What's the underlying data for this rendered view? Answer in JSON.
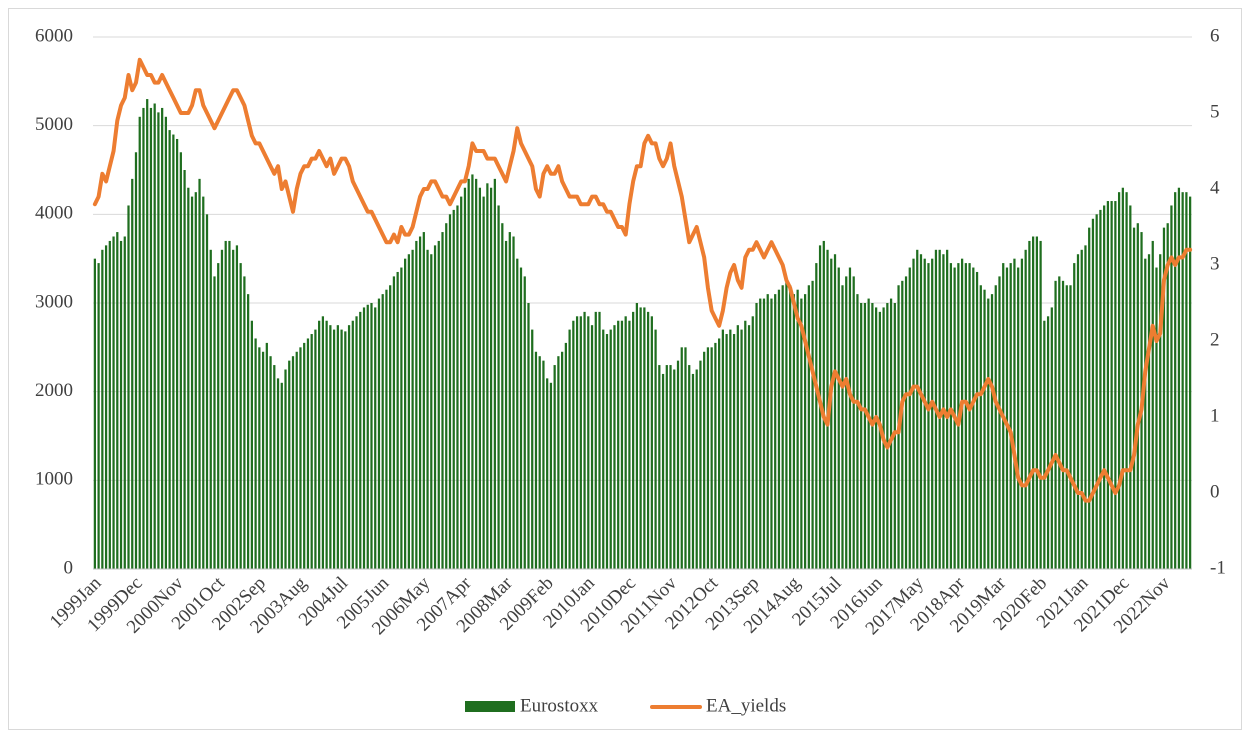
{
  "chart_data": {
    "type": "bar_line",
    "categories": [
      "1999Jan",
      null,
      null,
      null,
      null,
      null,
      null,
      null,
      null,
      null,
      null,
      "1999Dec",
      null,
      null,
      null,
      null,
      null,
      null,
      null,
      null,
      null,
      null,
      "2000Nov",
      null,
      null,
      null,
      null,
      null,
      null,
      null,
      null,
      null,
      null,
      "2001Oct",
      null,
      null,
      null,
      null,
      null,
      null,
      null,
      null,
      null,
      null,
      "2002Sep",
      null,
      null,
      null,
      null,
      null,
      null,
      null,
      null,
      null,
      null,
      "2003Aug",
      null,
      null,
      null,
      null,
      null,
      null,
      null,
      null,
      null,
      null,
      "2004Jul",
      null,
      null,
      null,
      null,
      null,
      null,
      null,
      null,
      null,
      null,
      "2005Jun",
      null,
      null,
      null,
      null,
      null,
      null,
      null,
      null,
      null,
      null,
      "2006May",
      null,
      null,
      null,
      null,
      null,
      null,
      null,
      null,
      null,
      null,
      "2007Apr",
      null,
      null,
      null,
      null,
      null,
      null,
      null,
      null,
      null,
      null,
      "2008Mar",
      null,
      null,
      null,
      null,
      null,
      null,
      null,
      null,
      null,
      null,
      "2009Feb",
      null,
      null,
      null,
      null,
      null,
      null,
      null,
      null,
      null,
      null,
      "2010Jan",
      null,
      null,
      null,
      null,
      null,
      null,
      null,
      null,
      null,
      null,
      "2010Dec",
      null,
      null,
      null,
      null,
      null,
      null,
      null,
      null,
      null,
      null,
      "2011Nov",
      null,
      null,
      null,
      null,
      null,
      null,
      null,
      null,
      null,
      null,
      "2012Oct",
      null,
      null,
      null,
      null,
      null,
      null,
      null,
      null,
      null,
      null,
      "2013Sep",
      null,
      null,
      null,
      null,
      null,
      null,
      null,
      null,
      null,
      null,
      "2014Aug",
      null,
      null,
      null,
      null,
      null,
      null,
      null,
      null,
      null,
      null,
      "2015Jul",
      null,
      null,
      null,
      null,
      null,
      null,
      null,
      null,
      null,
      null,
      "2016Jun",
      null,
      null,
      null,
      null,
      null,
      null,
      null,
      null,
      null,
      null,
      "2017May",
      null,
      null,
      null,
      null,
      null,
      null,
      null,
      null,
      null,
      null,
      "2018Apr",
      null,
      null,
      null,
      null,
      null,
      null,
      null,
      null,
      null,
      null,
      "2019Mar",
      null,
      null,
      null,
      null,
      null,
      null,
      null,
      null,
      null,
      null,
      "2020Feb",
      null,
      null,
      null,
      null,
      null,
      null,
      null,
      null,
      null,
      null,
      "2021Jan",
      null,
      null,
      null,
      null,
      null,
      null,
      null,
      null,
      null,
      null,
      "2021Dec",
      null,
      null,
      null,
      null,
      null,
      null,
      null,
      null,
      null,
      null,
      "2022Nov",
      null,
      null,
      null,
      null,
      null,
      null,
      null
    ],
    "series": [
      {
        "name": "Eurostoxx",
        "type": "bar",
        "color": "#1f6e1f",
        "values": [
          3500,
          3450,
          3600,
          3650,
          3700,
          3750,
          3800,
          3700,
          3750,
          4100,
          4400,
          4700,
          5100,
          5200,
          5300,
          5200,
          5250,
          5150,
          5200,
          5100,
          4950,
          4900,
          4850,
          4700,
          4500,
          4300,
          4200,
          4250,
          4400,
          4200,
          4000,
          3600,
          3300,
          3450,
          3600,
          3700,
          3700,
          3600,
          3650,
          3450,
          3300,
          3100,
          2800,
          2600,
          2500,
          2450,
          2550,
          2400,
          2300,
          2150,
          2100,
          2250,
          2350,
          2400,
          2450,
          2500,
          2550,
          2600,
          2650,
          2700,
          2800,
          2850,
          2800,
          2750,
          2700,
          2750,
          2700,
          2680,
          2750,
          2800,
          2850,
          2900,
          2950,
          2980,
          3000,
          2950,
          3050,
          3100,
          3150,
          3200,
          3300,
          3350,
          3400,
          3500,
          3550,
          3600,
          3700,
          3750,
          3800,
          3600,
          3550,
          3650,
          3700,
          3800,
          3900,
          4000,
          4050,
          4100,
          4200,
          4300,
          4400,
          4450,
          4400,
          4300,
          4200,
          4350,
          4300,
          4400,
          4100,
          3900,
          3700,
          3800,
          3750,
          3500,
          3400,
          3300,
          3000,
          2700,
          2450,
          2400,
          2350,
          2150,
          2100,
          2300,
          2400,
          2450,
          2550,
          2700,
          2800,
          2850,
          2850,
          2900,
          2850,
          2750,
          2900,
          2900,
          2700,
          2650,
          2700,
          2750,
          2800,
          2800,
          2850,
          2800,
          2900,
          3000,
          2950,
          2950,
          2900,
          2850,
          2700,
          2300,
          2200,
          2300,
          2300,
          2250,
          2350,
          2500,
          2500,
          2300,
          2200,
          2250,
          2350,
          2450,
          2500,
          2500,
          2550,
          2600,
          2700,
          2650,
          2700,
          2650,
          2750,
          2700,
          2800,
          2750,
          2850,
          3000,
          3050,
          3050,
          3100,
          3050,
          3100,
          3150,
          3200,
          3250,
          3200,
          3100,
          3150,
          3050,
          3100,
          3200,
          3250,
          3450,
          3650,
          3700,
          3600,
          3500,
          3550,
          3400,
          3200,
          3300,
          3400,
          3300,
          3100,
          3000,
          3000,
          3050,
          3000,
          2950,
          2900,
          2950,
          3000,
          3050,
          3000,
          3200,
          3250,
          3300,
          3400,
          3500,
          3600,
          3550,
          3500,
          3450,
          3500,
          3600,
          3600,
          3550,
          3600,
          3450,
          3400,
          3450,
          3500,
          3450,
          3450,
          3400,
          3350,
          3200,
          3150,
          3050,
          3100,
          3200,
          3300,
          3450,
          3400,
          3450,
          3500,
          3400,
          3500,
          3600,
          3700,
          3750,
          3750,
          3700,
          2800,
          2850,
          2950,
          3250,
          3300,
          3250,
          3200,
          3200,
          3450,
          3550,
          3600,
          3650,
          3850,
          3950,
          4000,
          4050,
          4100,
          4150,
          4150,
          4150,
          4250,
          4300,
          4250,
          4100,
          3850,
          3900,
          3800,
          3500,
          3550,
          3700,
          3400,
          3550,
          3850,
          3900,
          4100,
          4250,
          4300,
          4250,
          4250,
          4200
        ]
      },
      {
        "name": "EA_yields",
        "type": "line",
        "axis": "y2",
        "color": "#ed7d31",
        "values": [
          3.8,
          3.9,
          4.2,
          4.1,
          4.3,
          4.5,
          4.9,
          5.1,
          5.2,
          5.5,
          5.3,
          5.4,
          5.7,
          5.6,
          5.5,
          5.5,
          5.4,
          5.4,
          5.5,
          5.4,
          5.3,
          5.2,
          5.1,
          5.0,
          5.0,
          5.0,
          5.1,
          5.3,
          5.3,
          5.1,
          5.0,
          4.9,
          4.8,
          4.9,
          5.0,
          5.1,
          5.2,
          5.3,
          5.3,
          5.2,
          5.1,
          4.9,
          4.7,
          4.6,
          4.6,
          4.5,
          4.4,
          4.3,
          4.2,
          4.3,
          4.0,
          4.1,
          3.9,
          3.7,
          4.0,
          4.2,
          4.3,
          4.3,
          4.4,
          4.4,
          4.5,
          4.4,
          4.3,
          4.4,
          4.2,
          4.3,
          4.4,
          4.4,
          4.3,
          4.1,
          4.0,
          3.9,
          3.8,
          3.7,
          3.7,
          3.6,
          3.5,
          3.4,
          3.3,
          3.3,
          3.4,
          3.3,
          3.5,
          3.4,
          3.4,
          3.5,
          3.7,
          3.9,
          4.0,
          4.0,
          4.1,
          4.1,
          4.0,
          3.9,
          3.9,
          3.8,
          3.9,
          4.0,
          4.1,
          4.1,
          4.3,
          4.6,
          4.5,
          4.5,
          4.5,
          4.4,
          4.4,
          4.4,
          4.3,
          4.2,
          4.1,
          4.3,
          4.5,
          4.8,
          4.6,
          4.5,
          4.4,
          4.3,
          4.0,
          3.9,
          4.2,
          4.3,
          4.2,
          4.2,
          4.3,
          4.1,
          4.0,
          3.9,
          3.9,
          3.9,
          3.8,
          3.8,
          3.8,
          3.9,
          3.9,
          3.8,
          3.8,
          3.7,
          3.7,
          3.6,
          3.5,
          3.5,
          3.4,
          3.8,
          4.1,
          4.3,
          4.3,
          4.6,
          4.7,
          4.6,
          4.6,
          4.4,
          4.3,
          4.4,
          4.6,
          4.3,
          4.1,
          3.9,
          3.6,
          3.3,
          3.4,
          3.5,
          3.3,
          3.1,
          2.7,
          2.4,
          2.3,
          2.2,
          2.4,
          2.7,
          2.9,
          3.0,
          2.8,
          2.7,
          3.1,
          3.2,
          3.2,
          3.3,
          3.2,
          3.1,
          3.2,
          3.3,
          3.2,
          3.1,
          3.0,
          2.8,
          2.7,
          2.5,
          2.3,
          2.2,
          2.0,
          1.8,
          1.6,
          1.4,
          1.2,
          1.0,
          0.9,
          1.4,
          1.6,
          1.5,
          1.4,
          1.5,
          1.3,
          1.2,
          1.2,
          1.1,
          1.1,
          1.0,
          0.9,
          1.0,
          0.9,
          0.7,
          0.6,
          0.7,
          0.8,
          0.8,
          1.2,
          1.3,
          1.3,
          1.4,
          1.4,
          1.3,
          1.2,
          1.1,
          1.2,
          1.1,
          1.0,
          1.1,
          1.0,
          1.1,
          1.0,
          0.9,
          1.2,
          1.2,
          1.1,
          1.2,
          1.3,
          1.3,
          1.4,
          1.5,
          1.4,
          1.2,
          1.1,
          1.0,
          0.9,
          0.8,
          0.5,
          0.2,
          0.1,
          0.1,
          0.2,
          0.3,
          0.3,
          0.2,
          0.2,
          0.3,
          0.4,
          0.5,
          0.4,
          0.3,
          0.3,
          0.2,
          0.1,
          0.0,
          0.0,
          -0.1,
          -0.1,
          0.0,
          0.1,
          0.2,
          0.3,
          0.2,
          0.1,
          0.0,
          0.1,
          0.3,
          0.3,
          0.3,
          0.5,
          0.9,
          1.1,
          1.6,
          1.9,
          2.2,
          2.0,
          2.1,
          2.8,
          3.0,
          3.1,
          3.0,
          3.1,
          3.1,
          3.2,
          3.2
        ]
      }
    ],
    "ylim": [
      0,
      6000
    ],
    "yticks": [
      0,
      1000,
      2000,
      3000,
      4000,
      5000,
      6000
    ],
    "y2lim": [
      -1,
      6
    ],
    "y2ticks": [
      -1,
      0,
      1,
      2,
      3,
      4,
      5,
      6
    ],
    "grid": true,
    "legend": "bottom"
  }
}
